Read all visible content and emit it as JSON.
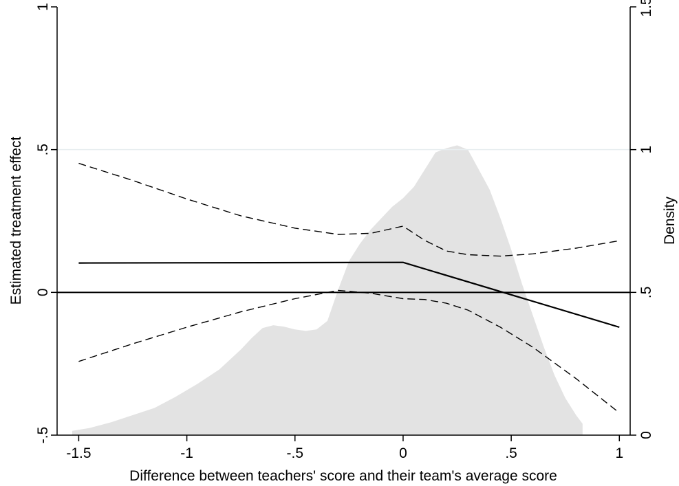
{
  "chart_data": {
    "type": "line",
    "xlabel": "Difference between teachers' score and their team's average score",
    "ylabel": "Estimated treatment effect",
    "y2label": "Density",
    "xlim": [
      -1.6,
      1.05
    ],
    "ylim": [
      -0.5,
      1.0
    ],
    "y2lim": [
      0,
      1.5
    ],
    "x_ticks": [
      -1.5,
      -1,
      -0.5,
      0,
      0.5,
      1
    ],
    "x_tick_labels": [
      "-1.5",
      "-1",
      "-.5",
      "0",
      ".5",
      "1"
    ],
    "y_ticks": [
      -0.5,
      0,
      0.5,
      1
    ],
    "y_tick_labels": [
      "-.5",
      "0",
      ".5",
      "1"
    ],
    "y2_ticks": [
      0,
      0.5,
      1,
      1.5
    ],
    "y2_tick_labels": [
      "0",
      ".5",
      "1",
      "1.5"
    ],
    "grid": false,
    "reference_line_y": 0,
    "series": [
      {
        "role": "estimate",
        "style": "solid",
        "axis": "left",
        "x": [
          -1.5,
          0,
          1
        ],
        "y": [
          0.103,
          0.105,
          -0.122
        ]
      },
      {
        "role": "upper_ci",
        "style": "dashed",
        "axis": "left",
        "x": [
          -1.5,
          -1.25,
          -1,
          -0.75,
          -0.5,
          -0.3,
          -0.15,
          0,
          0.1,
          0.2,
          0.3,
          0.45,
          0.6,
          0.8,
          1
        ],
        "y": [
          0.452,
          0.392,
          0.327,
          0.268,
          0.225,
          0.203,
          0.207,
          0.232,
          0.182,
          0.145,
          0.132,
          0.127,
          0.135,
          0.155,
          0.181
        ]
      },
      {
        "role": "lower_ci",
        "style": "dashed",
        "axis": "left",
        "x": [
          -1.5,
          -1.25,
          -1,
          -0.75,
          -0.5,
          -0.3,
          -0.15,
          0,
          0.1,
          0.2,
          0.3,
          0.45,
          0.6,
          0.8,
          1
        ],
        "y": [
          -0.242,
          -0.18,
          -0.122,
          -0.068,
          -0.022,
          0.007,
          -0.003,
          -0.022,
          -0.025,
          -0.038,
          -0.062,
          -0.122,
          -0.192,
          -0.302,
          -0.422
        ]
      },
      {
        "role": "density",
        "style": "area",
        "axis": "right",
        "color": "#e3e3e3",
        "x": [
          -1.53,
          -1.45,
          -1.35,
          -1.25,
          -1.15,
          -1.05,
          -0.95,
          -0.85,
          -0.75,
          -0.7,
          -0.65,
          -0.6,
          -0.55,
          -0.5,
          -0.45,
          -0.4,
          -0.35,
          -0.3,
          -0.25,
          -0.2,
          -0.15,
          -0.1,
          -0.05,
          0,
          0.05,
          0.1,
          0.15,
          0.2,
          0.25,
          0.3,
          0.35,
          0.4,
          0.45,
          0.5,
          0.55,
          0.6,
          0.65,
          0.7,
          0.75,
          0.8,
          0.83
        ],
        "y": [
          0.015,
          0.025,
          0.045,
          0.07,
          0.095,
          0.135,
          0.18,
          0.23,
          0.3,
          0.34,
          0.375,
          0.385,
          0.38,
          0.37,
          0.365,
          0.37,
          0.4,
          0.51,
          0.61,
          0.67,
          0.72,
          0.76,
          0.8,
          0.83,
          0.87,
          0.93,
          0.99,
          1.005,
          1.015,
          1.0,
          0.93,
          0.86,
          0.76,
          0.65,
          0.53,
          0.42,
          0.31,
          0.21,
          0.13,
          0.07,
          0.04
        ]
      }
    ]
  }
}
